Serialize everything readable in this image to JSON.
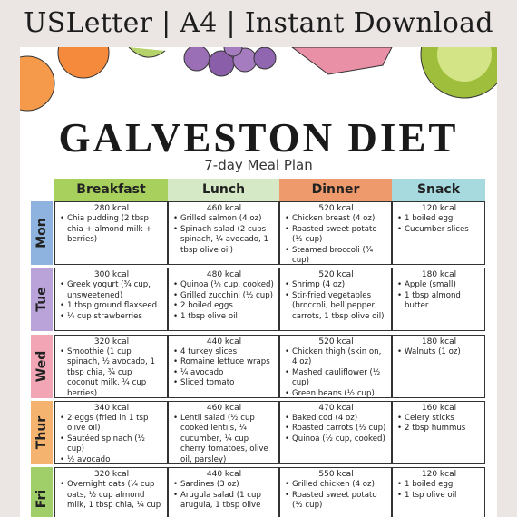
{
  "banner": "USLetter | A4 | Instant Download",
  "title": "GALVESTON DIET",
  "subtitle": "7-day Meal Plan",
  "columns": [
    "Breakfast",
    "Lunch",
    "Dinner",
    "Snack"
  ],
  "days": [
    {
      "label": "Mon",
      "meals": [
        {
          "kcal": "280 kcal",
          "items": [
            "Chia pudding (2 tbsp chia + almond milk + berries)"
          ]
        },
        {
          "kcal": "460 kcal",
          "items": [
            "Grilled salmon (4 oz)",
            "Spinach salad (2 cups spinach, ¼ avocado, 1 tbsp olive oil)"
          ]
        },
        {
          "kcal": "520 kcal",
          "items": [
            "Chicken breast (4 oz)",
            "Roasted sweet potato (½ cup)",
            "Steamed broccoli (¾ cup)"
          ]
        },
        {
          "kcal": "120 kcal",
          "items": [
            "1 boiled egg",
            "Cucumber slices"
          ]
        }
      ]
    },
    {
      "label": "Tue",
      "meals": [
        {
          "kcal": "300 kcal",
          "items": [
            "Greek yogurt (¾ cup, unsweetened)",
            "1 tbsp ground flaxseed",
            "¼ cup strawberries"
          ]
        },
        {
          "kcal": "480 kcal",
          "items": [
            "Quinoa (½ cup, cooked)",
            "Grilled zucchini (½ cup)",
            "2 boiled eggs",
            "1 tbsp olive oil"
          ]
        },
        {
          "kcal": "520 kcal",
          "items": [
            "Shrimp (4 oz)",
            "Stir-fried vegetables (broccoli, bell pepper, carrots, 1 tbsp olive oil)"
          ]
        },
        {
          "kcal": "180 kcal",
          "items": [
            "Apple (small)",
            "1 tbsp almond butter"
          ]
        }
      ]
    },
    {
      "label": "Wed",
      "meals": [
        {
          "kcal": "320 kcal",
          "items": [
            "Smoothie (1 cup spinach, ½ avocado, 1 tbsp chia, ¾ cup coconut milk, ¼ cup berries)"
          ]
        },
        {
          "kcal": "440 kcal",
          "items": [
            "4 turkey slices",
            "Romaine lettuce wraps",
            "¼ avocado",
            "Sliced tomato"
          ]
        },
        {
          "kcal": "520 kcal",
          "items": [
            "Chicken thigh (skin on, 4 oz)",
            "Mashed cauliflower (½ cup)",
            "Green beans (½ cup)"
          ]
        },
        {
          "kcal": "180 kcal",
          "items": [
            "Walnuts (1 oz)"
          ]
        }
      ]
    },
    {
      "label": "Thur",
      "meals": [
        {
          "kcal": "340 kcal",
          "items": [
            "2 eggs (fried in 1 tsp olive oil)",
            "Sautéed spinach (½ cup)",
            "½ avocado"
          ]
        },
        {
          "kcal": "460 kcal",
          "items": [
            "Lentil salad (½ cup cooked lentils, ¼ cucumber, ¼ cup cherry tomatoes, olive oil, parsley)"
          ]
        },
        {
          "kcal": "470 kcal",
          "items": [
            "Baked cod (4 oz)",
            "Roasted carrots (½ cup)",
            "Quinoa (½ cup, cooked)"
          ]
        },
        {
          "kcal": "160 kcal",
          "items": [
            "Celery sticks",
            "2 tbsp hummus"
          ]
        }
      ]
    },
    {
      "label": "Fri",
      "meals": [
        {
          "kcal": "320 kcal",
          "items": [
            "Overnight oats (¼ cup oats, ½ cup almond milk, 1 tbsp chia, ¼ cup"
          ]
        },
        {
          "kcal": "440 kcal",
          "items": [
            "Sardines (3 oz)",
            "Arugula salad (1 cup arugula, 1 tbsp olive"
          ]
        },
        {
          "kcal": "550 kcal",
          "items": [
            "Grilled chicken (4 oz)",
            "Roasted sweet potato (½ cup)"
          ]
        },
        {
          "kcal": "120 kcal",
          "items": [
            "1 boiled egg",
            "1 tsp olive oil"
          ]
        }
      ]
    }
  ]
}
